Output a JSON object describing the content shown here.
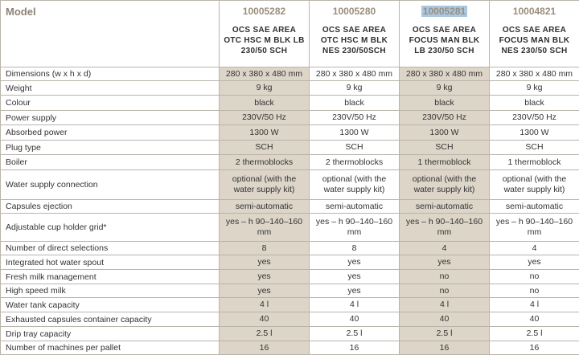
{
  "header": {
    "label": "Model",
    "columns": [
      {
        "code": "10005282",
        "name": "OCS SAE AREA OTC HSC M BLK LB 230/50 SCH"
      },
      {
        "code": "10005280",
        "name": "OCS SAE AREA OTC HSC M BLK NES 230/50SCH"
      },
      {
        "code": "10005281",
        "name": "OCS SAE AREA FOCUS MAN BLK LB 230/50 SCH"
      },
      {
        "code": "10004821",
        "name": "OCS SAE AREA FOCUS MAN BLK NES 230/50 SCH"
      }
    ]
  },
  "rows": [
    {
      "label": "Dimensions (w x h x d)",
      "values": [
        "280 x 380 x 480 mm",
        "280 x 380 x 480 mm",
        "280 x 380 x 480 mm",
        "280 x 380 x 480 mm"
      ]
    },
    {
      "label": "Weight",
      "values": [
        "9 kg",
        "9 kg",
        "9 kg",
        "9 kg"
      ]
    },
    {
      "label": "Colour",
      "values": [
        "black",
        "black",
        "black",
        "black"
      ]
    },
    {
      "label": "Power supply",
      "values": [
        "230V/50 Hz",
        "230V/50 Hz",
        "230V/50 Hz",
        "230V/50 Hz"
      ]
    },
    {
      "label": "Absorbed power",
      "values": [
        "1300 W",
        "1300 W",
        "1300 W",
        "1300 W"
      ]
    },
    {
      "label": "Plug type",
      "values": [
        "SCH",
        "SCH",
        "SCH",
        "SCH"
      ]
    },
    {
      "label": "Boiler",
      "values": [
        "2 thermoblocks",
        "2 thermoblocks",
        "1 thermoblock",
        "1 thermoblock"
      ]
    },
    {
      "label": "Water supply connection",
      "values": [
        "optional (with the water supply kit)",
        "optional (with the water supply kit)",
        "optional (with the water supply kit)",
        "optional (with the water supply kit)"
      ]
    },
    {
      "label": "Capsules ejection",
      "values": [
        "semi-automatic",
        "semi-automatic",
        "semi-automatic",
        "semi-automatic"
      ]
    },
    {
      "label": "Adjustable cup holder grid*",
      "values": [
        "yes – h 90–140–160 mm",
        "yes – h 90–140–160 mm",
        "yes – h 90–140–160 mm",
        "yes – h 90–140–160 mm"
      ]
    },
    {
      "label": "Number of direct selections",
      "values": [
        "8",
        "8",
        "4",
        "4"
      ]
    },
    {
      "label": "Integrated hot water spout",
      "values": [
        "yes",
        "yes",
        "yes",
        "yes"
      ]
    },
    {
      "label": "Fresh milk management",
      "values": [
        "yes",
        "yes",
        "no",
        "no"
      ]
    },
    {
      "label": "High speed milk",
      "values": [
        "yes",
        "yes",
        "no",
        "no"
      ]
    },
    {
      "label": "Water tank capacity",
      "values": [
        "4 l",
        "4 l",
        "4 l",
        "4 l"
      ]
    },
    {
      "label": "Exhausted capsules container capacity",
      "values": [
        "40",
        "40",
        "40",
        "40"
      ]
    },
    {
      "label": "Drip tray capacity",
      "values": [
        "2.5 l",
        "2.5 l",
        "2.5 l",
        "2.5 l"
      ]
    },
    {
      "label": "Number of machines per pallet",
      "values": [
        "16",
        "16",
        "16",
        "16"
      ]
    }
  ]
}
